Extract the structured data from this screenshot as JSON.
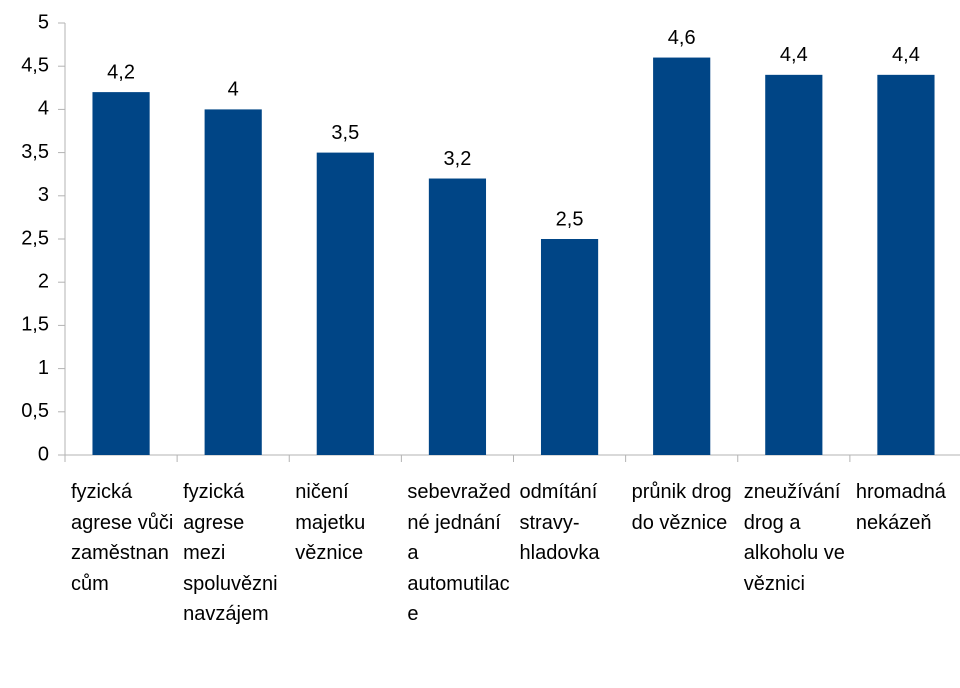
{
  "chart_data": {
    "type": "bar",
    "categories": [
      "fyzická agrese vůči zaměstnancům",
      "fyzická agrese mezi spoluvězni navzájem",
      "ničení majetku věznice",
      "sebevražedné jednání a automutilace",
      "odmítání stravy-hladovka",
      "průnik drog do věznice",
      "zneužívání drog a alkoholu ve věznici",
      "hromadná nekázeň"
    ],
    "values": [
      4.2,
      4,
      3.5,
      3.2,
      2.5,
      4.6,
      4.4,
      4.4
    ],
    "value_labels": [
      "4,2",
      "4",
      "3,5",
      "3,2",
      "2,5",
      "4,6",
      "4,4",
      "4,4"
    ],
    "color": "#004586",
    "ylim": [
      0,
      5
    ],
    "yticks": [
      0,
      {
        "value": 0.5,
        "label": "0,5"
      },
      1,
      {
        "value": 1.5,
        "label": "1,5"
      },
      2,
      {
        "value": 2.5,
        "label": "2,5"
      },
      3,
      {
        "value": 3.5,
        "label": "3,5"
      },
      4,
      {
        "value": 4.5,
        "label": "4,5"
      },
      5
    ],
    "grid": false
  }
}
